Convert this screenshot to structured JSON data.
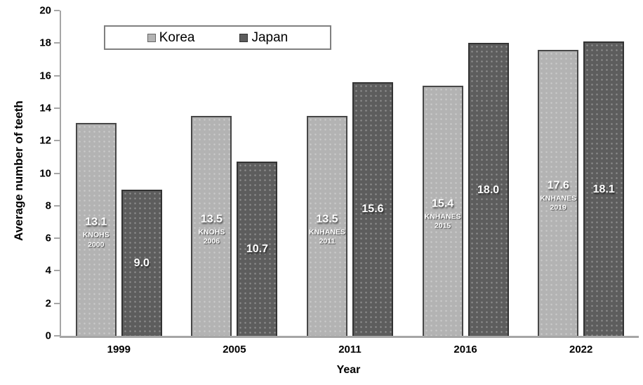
{
  "chart_data": {
    "type": "bar",
    "title": "",
    "xlabel": "Year",
    "ylabel": "Average number of teeth",
    "ylim": [
      0,
      20
    ],
    "yticks": [
      0,
      2,
      4,
      6,
      8,
      10,
      12,
      14,
      16,
      18,
      20
    ],
    "categories": [
      "1999",
      "2005",
      "2011",
      "2016",
      "2022"
    ],
    "series": [
      {
        "name": "Korea",
        "color": "#b3b3b3",
        "border_color": "#474747",
        "values": [
          13.1,
          13.5,
          13.5,
          15.4,
          17.6
        ],
        "value_labels": [
          "13.1",
          "13.5",
          "13.5",
          "15.4",
          "17.6"
        ],
        "bar_annotations": [
          [
            "KNOHS",
            "2000"
          ],
          [
            "KNOHS",
            "2006"
          ],
          [
            "KNHANES",
            "2011"
          ],
          [
            "KNHANES",
            "2015"
          ],
          [
            "KNHANES",
            "2019"
          ]
        ]
      },
      {
        "name": "Japan",
        "color": "#5d5d5d",
        "border_color": "#333333",
        "values": [
          9.0,
          10.7,
          15.6,
          18.0,
          18.1
        ],
        "value_labels": [
          "9.0",
          "10.7",
          "15.6",
          "18.0",
          "18.1"
        ],
        "bar_annotations": [
          null,
          null,
          null,
          null,
          null
        ]
      }
    ],
    "legend": {
      "entries": [
        "Korea",
        "Japan"
      ],
      "position": "top-left"
    },
    "grid": false,
    "bar_label_color": "#ffffff",
    "axis_color": "#a6a6a6"
  }
}
